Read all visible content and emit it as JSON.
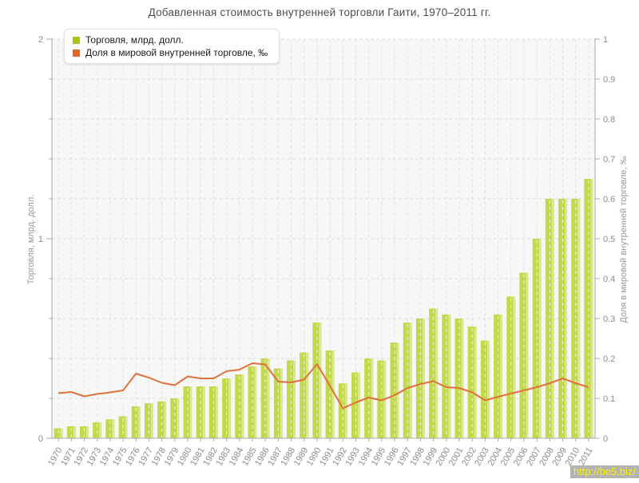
{
  "title": "Добавленная стоимость внутренней торговли Гаити, 1970–2011 гг.",
  "watermark": "http://be5.biz/",
  "legend": {
    "items": [
      {
        "label": "Торговля, млрд. долл.",
        "color": "#a6c614"
      },
      {
        "label": "Доля в мировой внутренней торговле, ‰",
        "color": "#e8632b"
      }
    ]
  },
  "colors": {
    "bar_body": "#c3d94c",
    "bar_edge_light": "#dbe890",
    "bar_dash": "#ffffff",
    "line": "#e0713c",
    "grid": "#dcdcdc",
    "grid_vertical": "#e2e2e2",
    "axis_line": "#aaaaaa",
    "tick_text": "#8b8b8b",
    "axis_title_text": "#999999",
    "plot_bg": "#f7f7f7",
    "title_text": "#4d4d4d"
  },
  "chart_data": {
    "type": "bar",
    "title": "Добавленная стоимость внутренней торговли Гаити, 1970–2011 гг.",
    "categories": [
      "1970",
      "1971",
      "1972",
      "1973",
      "1974",
      "1975",
      "1976",
      "1977",
      "1978",
      "1979",
      "1980",
      "1981",
      "1982",
      "1983",
      "1984",
      "1985",
      "1986",
      "1987",
      "1988",
      "1989",
      "1990",
      "1991",
      "1992",
      "1993",
      "1994",
      "1995",
      "1996",
      "1997",
      "1998",
      "1999",
      "2000",
      "2001",
      "2002",
      "2003",
      "2004",
      "2005",
      "2006",
      "2007",
      "2008",
      "2009",
      "2010",
      "2011"
    ],
    "series": [
      {
        "name": "Торговля, млрд. долл.",
        "type": "bar",
        "axis": "left",
        "values": [
          0.05,
          0.06,
          0.06,
          0.08,
          0.095,
          0.11,
          0.16,
          0.175,
          0.185,
          0.2,
          0.26,
          0.26,
          0.26,
          0.3,
          0.32,
          0.36,
          0.4,
          0.35,
          0.39,
          0.43,
          0.58,
          0.44,
          0.275,
          0.33,
          0.4,
          0.39,
          0.48,
          0.58,
          0.6,
          0.65,
          0.62,
          0.6,
          0.56,
          0.49,
          0.62,
          0.71,
          0.83,
          1.0,
          1.2,
          1.2,
          1.2,
          1.3
        ]
      },
      {
        "name": "Доля в мировой внутренней торговле, ‰",
        "type": "line",
        "axis": "right",
        "values": [
          0.113,
          0.116,
          0.105,
          0.111,
          0.115,
          0.12,
          0.162,
          0.152,
          0.139,
          0.133,
          0.155,
          0.15,
          0.15,
          0.168,
          0.172,
          0.188,
          0.185,
          0.142,
          0.14,
          0.147,
          0.186,
          0.131,
          0.075,
          0.09,
          0.102,
          0.095,
          0.108,
          0.126,
          0.136,
          0.143,
          0.128,
          0.126,
          0.115,
          0.095,
          0.104,
          0.112,
          0.12,
          0.128,
          0.138,
          0.15,
          0.138,
          0.128
        ]
      }
    ],
    "left_axis": {
      "title": "Торговля, млрд. долл.",
      "min": 0,
      "max": 2,
      "major_tick_labels": [
        "0",
        "1",
        "2"
      ],
      "minor_step": 0.2
    },
    "right_axis": {
      "title": "Доля в мировой внутренней торговле, ‰",
      "min": 0,
      "max": 1,
      "tick_labels": [
        "0",
        "0.1",
        "0.2",
        "0.3",
        "0.4",
        "0.5",
        "0.6",
        "0.7",
        "0.8",
        "0.9",
        "1"
      ]
    },
    "grid": true,
    "legend_position": "top-left"
  }
}
